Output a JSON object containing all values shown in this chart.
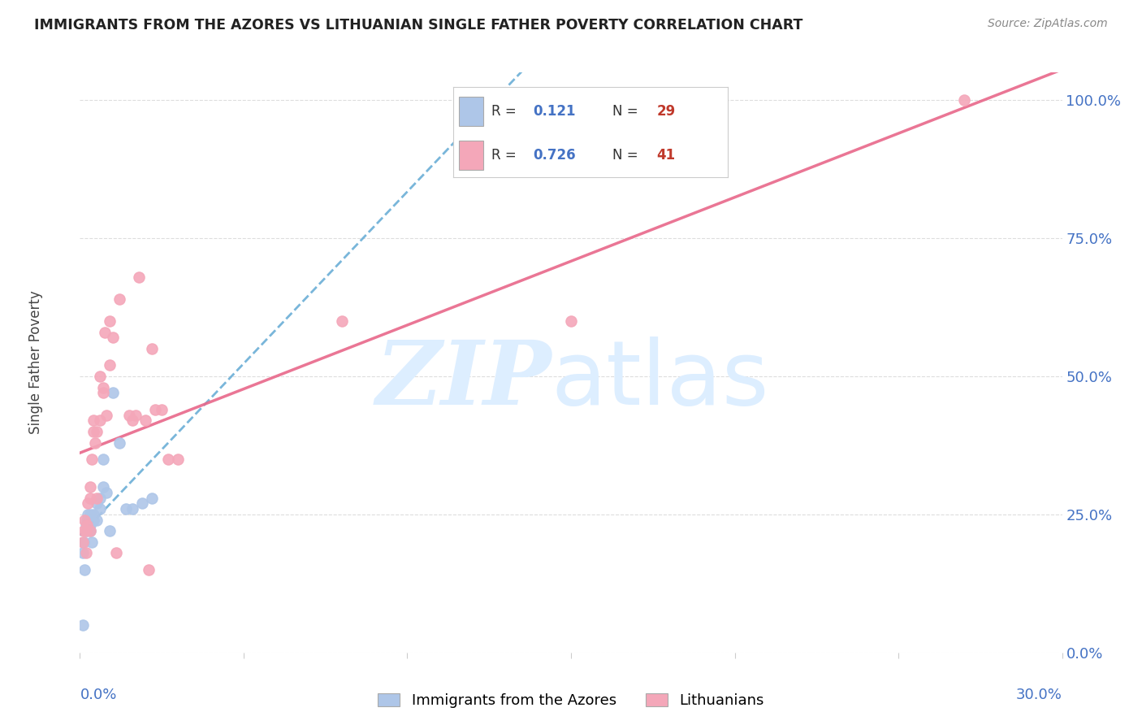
{
  "title": "IMMIGRANTS FROM THE AZORES VS LITHUANIAN SINGLE FATHER POVERTY CORRELATION CHART",
  "source": "Source: ZipAtlas.com",
  "ylabel": "Single Father Poverty",
  "legend_labels": [
    "Immigrants from the Azores",
    "Lithuanians"
  ],
  "azores_R": 0.121,
  "azores_N": 29,
  "lith_R": 0.726,
  "lith_N": 41,
  "azores_color": "#aec6e8",
  "lith_color": "#f4a7b9",
  "azores_line_color": "#6baed6",
  "lith_line_color": "#e8678a",
  "azores_x": [
    0.0008,
    0.001,
    0.0012,
    0.0015,
    0.002,
    0.002,
    0.0022,
    0.0025,
    0.003,
    0.003,
    0.003,
    0.0032,
    0.0035,
    0.004,
    0.004,
    0.005,
    0.005,
    0.006,
    0.006,
    0.007,
    0.007,
    0.008,
    0.009,
    0.01,
    0.012,
    0.014,
    0.016,
    0.019,
    0.022
  ],
  "azores_y": [
    0.05,
    0.18,
    0.2,
    0.15,
    0.22,
    0.23,
    0.24,
    0.25,
    0.22,
    0.23,
    0.24,
    0.25,
    0.2,
    0.24,
    0.25,
    0.24,
    0.27,
    0.26,
    0.28,
    0.3,
    0.35,
    0.29,
    0.22,
    0.47,
    0.38,
    0.26,
    0.26,
    0.27,
    0.28
  ],
  "lith_x": [
    0.001,
    0.0012,
    0.0015,
    0.002,
    0.002,
    0.0022,
    0.0025,
    0.003,
    0.003,
    0.0032,
    0.0035,
    0.004,
    0.004,
    0.0045,
    0.005,
    0.005,
    0.006,
    0.006,
    0.007,
    0.007,
    0.0075,
    0.008,
    0.009,
    0.009,
    0.01,
    0.011,
    0.012,
    0.015,
    0.016,
    0.017,
    0.018,
    0.02,
    0.021,
    0.022,
    0.023,
    0.025,
    0.027,
    0.03,
    0.08,
    0.15,
    0.27
  ],
  "lith_y": [
    0.2,
    0.22,
    0.24,
    0.18,
    0.22,
    0.23,
    0.27,
    0.22,
    0.28,
    0.3,
    0.35,
    0.4,
    0.42,
    0.38,
    0.28,
    0.4,
    0.42,
    0.5,
    0.47,
    0.48,
    0.58,
    0.43,
    0.52,
    0.6,
    0.57,
    0.18,
    0.64,
    0.43,
    0.42,
    0.43,
    0.68,
    0.42,
    0.15,
    0.55,
    0.44,
    0.44,
    0.35,
    0.35,
    0.6,
    0.6,
    1.0
  ],
  "xmin": 0.0,
  "xmax": 0.3,
  "ymin": 0.0,
  "ymax": 1.05,
  "ytick_values": [
    0.0,
    0.25,
    0.5,
    0.75,
    1.0
  ],
  "ytick_labels": [
    "0.0%",
    "25.0%",
    "50.0%",
    "75.0%",
    "100.0%"
  ]
}
